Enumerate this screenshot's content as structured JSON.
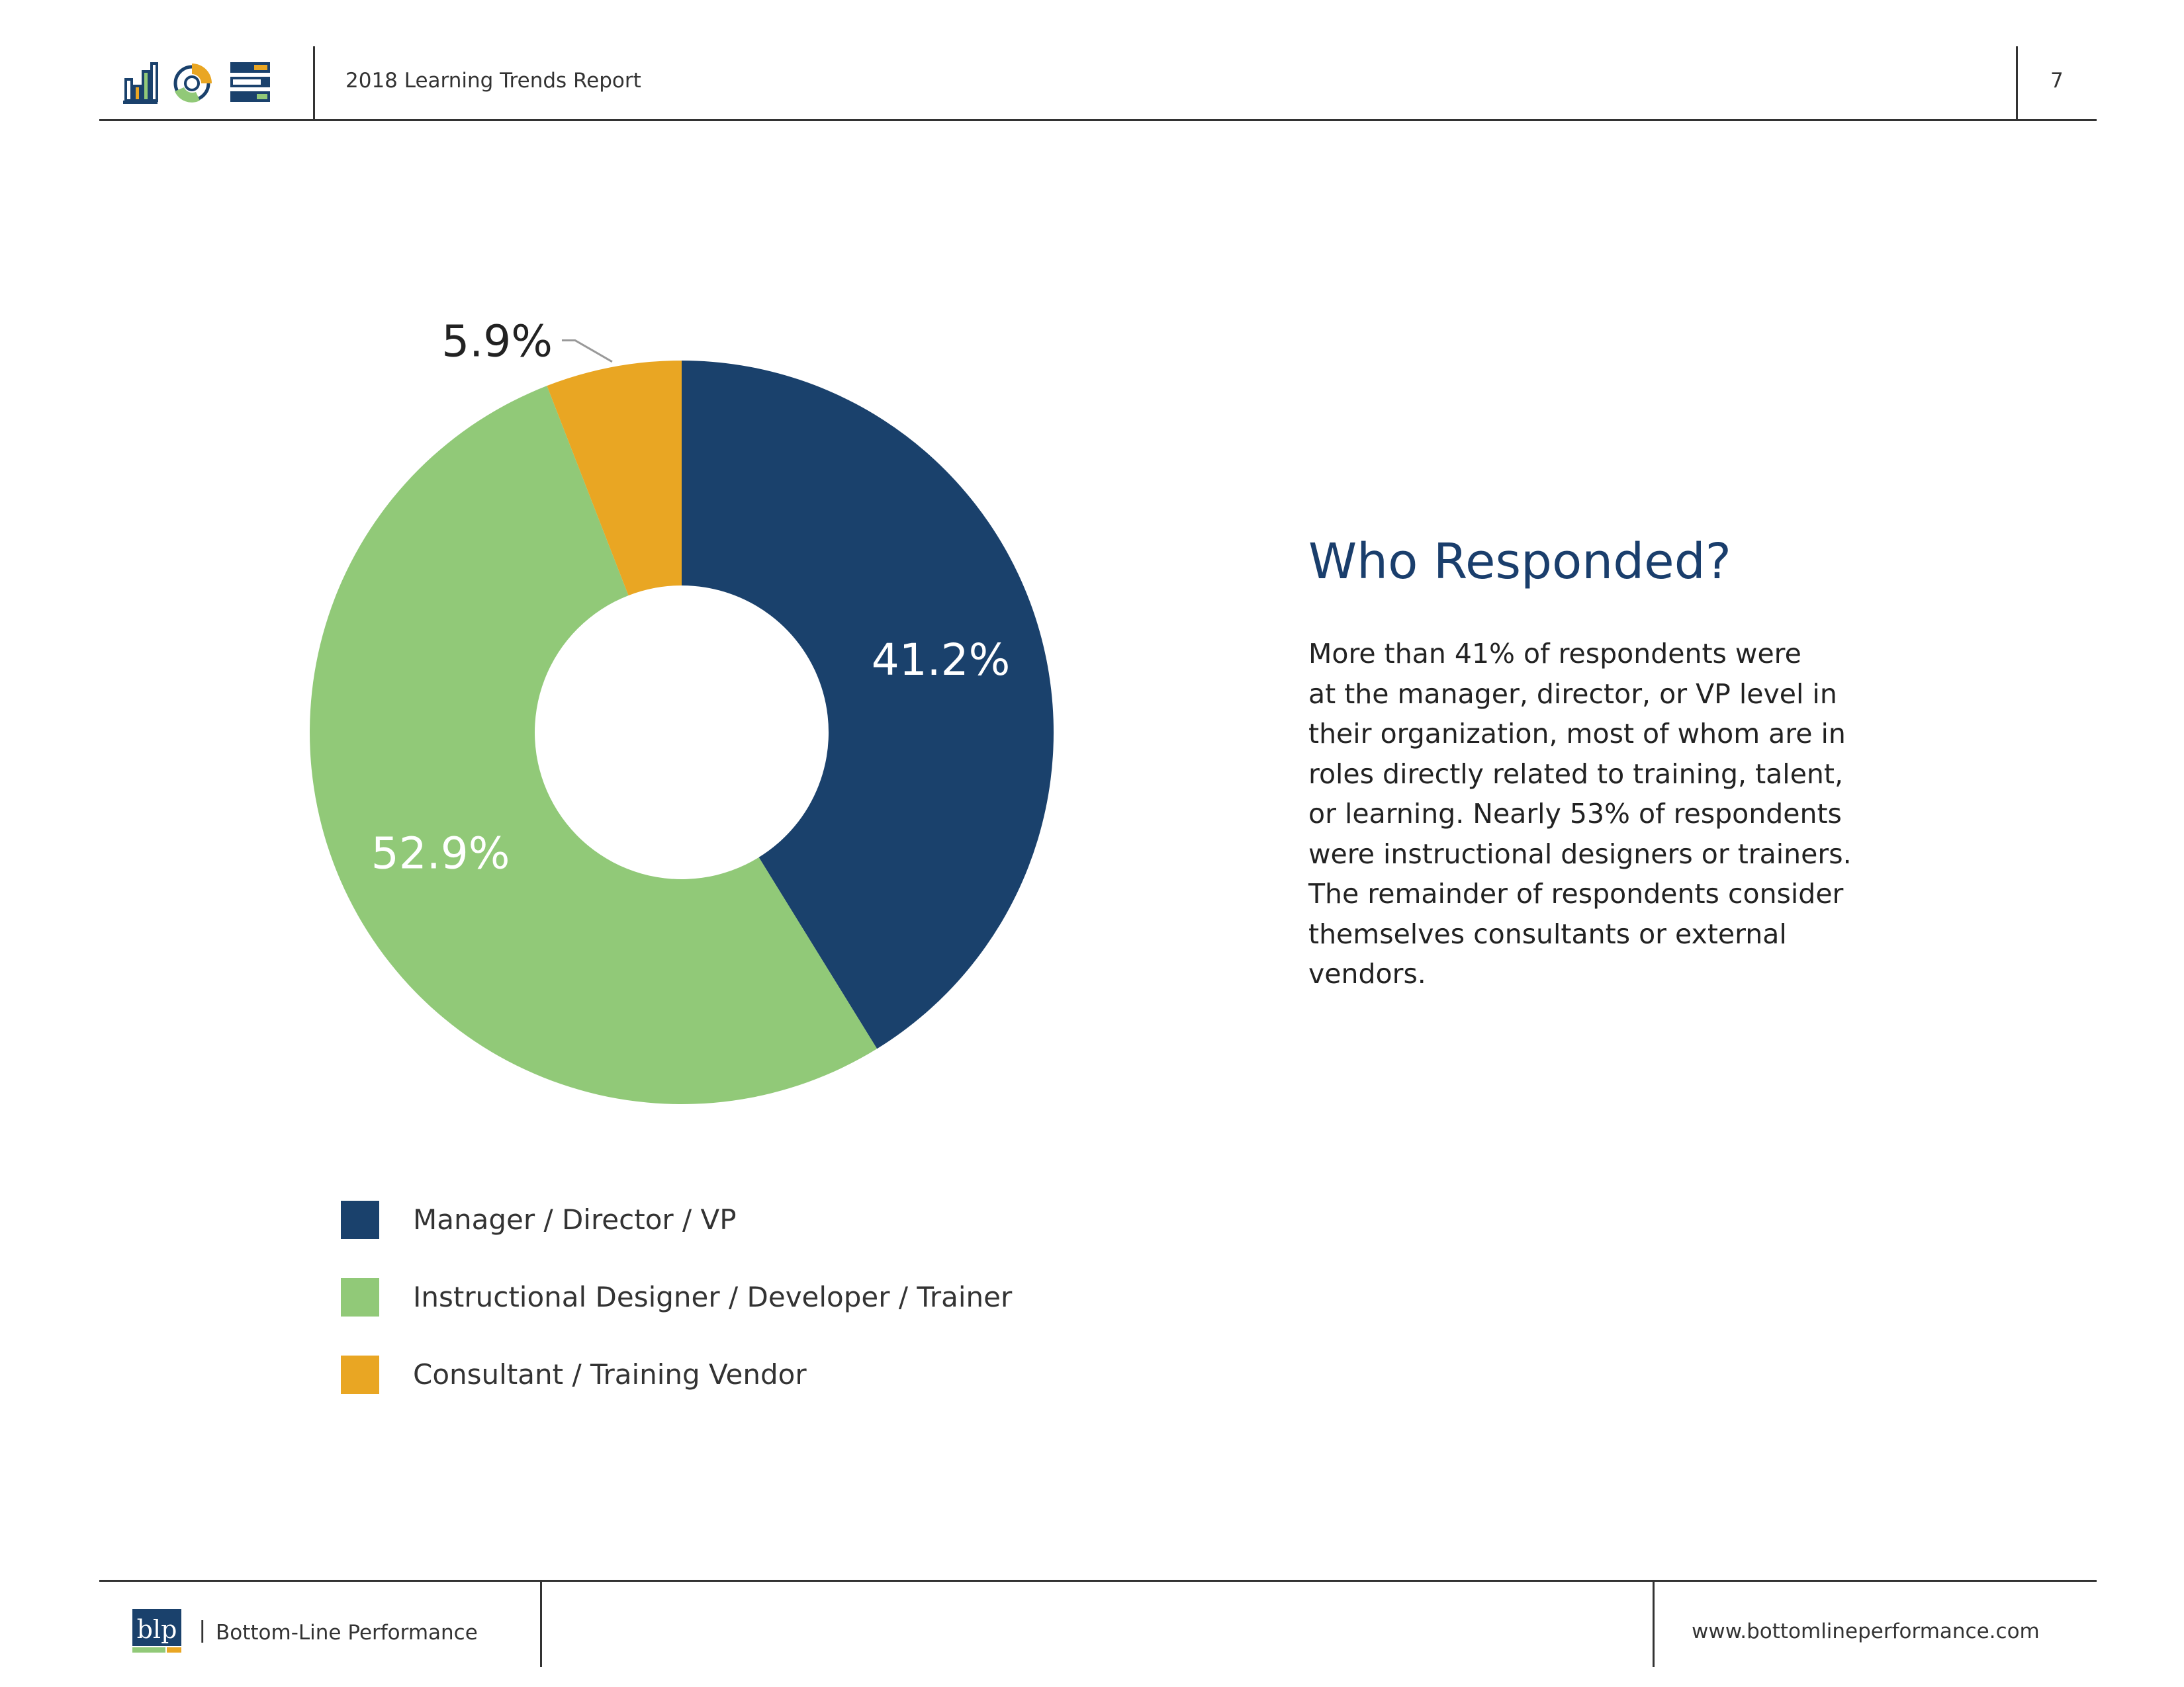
{
  "header": {
    "report_title": "2018 Learning Trends Report",
    "page_number": "7",
    "icons": [
      "bar-chart-icon",
      "donut-chart-icon",
      "list-layout-icon"
    ]
  },
  "chart_data": {
    "type": "pie",
    "donut": true,
    "series": [
      {
        "name": "Manager / Director / VP",
        "value": 41.2,
        "label": "41.2%",
        "color": "#1a416c"
      },
      {
        "name": "Instructional Designer / Developer / Trainer",
        "value": 52.9,
        "label": "52.9%",
        "color": "#91c978"
      },
      {
        "name": "Consultant / Training Vendor",
        "value": 5.9,
        "label": "5.9%",
        "color": "#e9a623"
      }
    ],
    "legend_placement": "bottom-left"
  },
  "text_block": {
    "heading": "Who Responded?",
    "body_lines": [
      "More than 41% of respondents were",
      "at the manager, director, or VP level in",
      "their organization, most of whom are in",
      "roles directly related to training, talent,",
      "or learning. Nearly 53% of respondents",
      "were instructional designers or trainers.",
      "The remainder of respondents consider",
      "themselves consultants or external",
      "vendors."
    ]
  },
  "footer": {
    "logo_text": "blp",
    "separator": "|",
    "company": "Bottom-Line Performance",
    "website": "www.bottomlineperformance.com"
  },
  "colors": {
    "navy": "#1a416c",
    "green": "#91c978",
    "orange": "#e9a623",
    "heading": "#1a3e6c"
  }
}
